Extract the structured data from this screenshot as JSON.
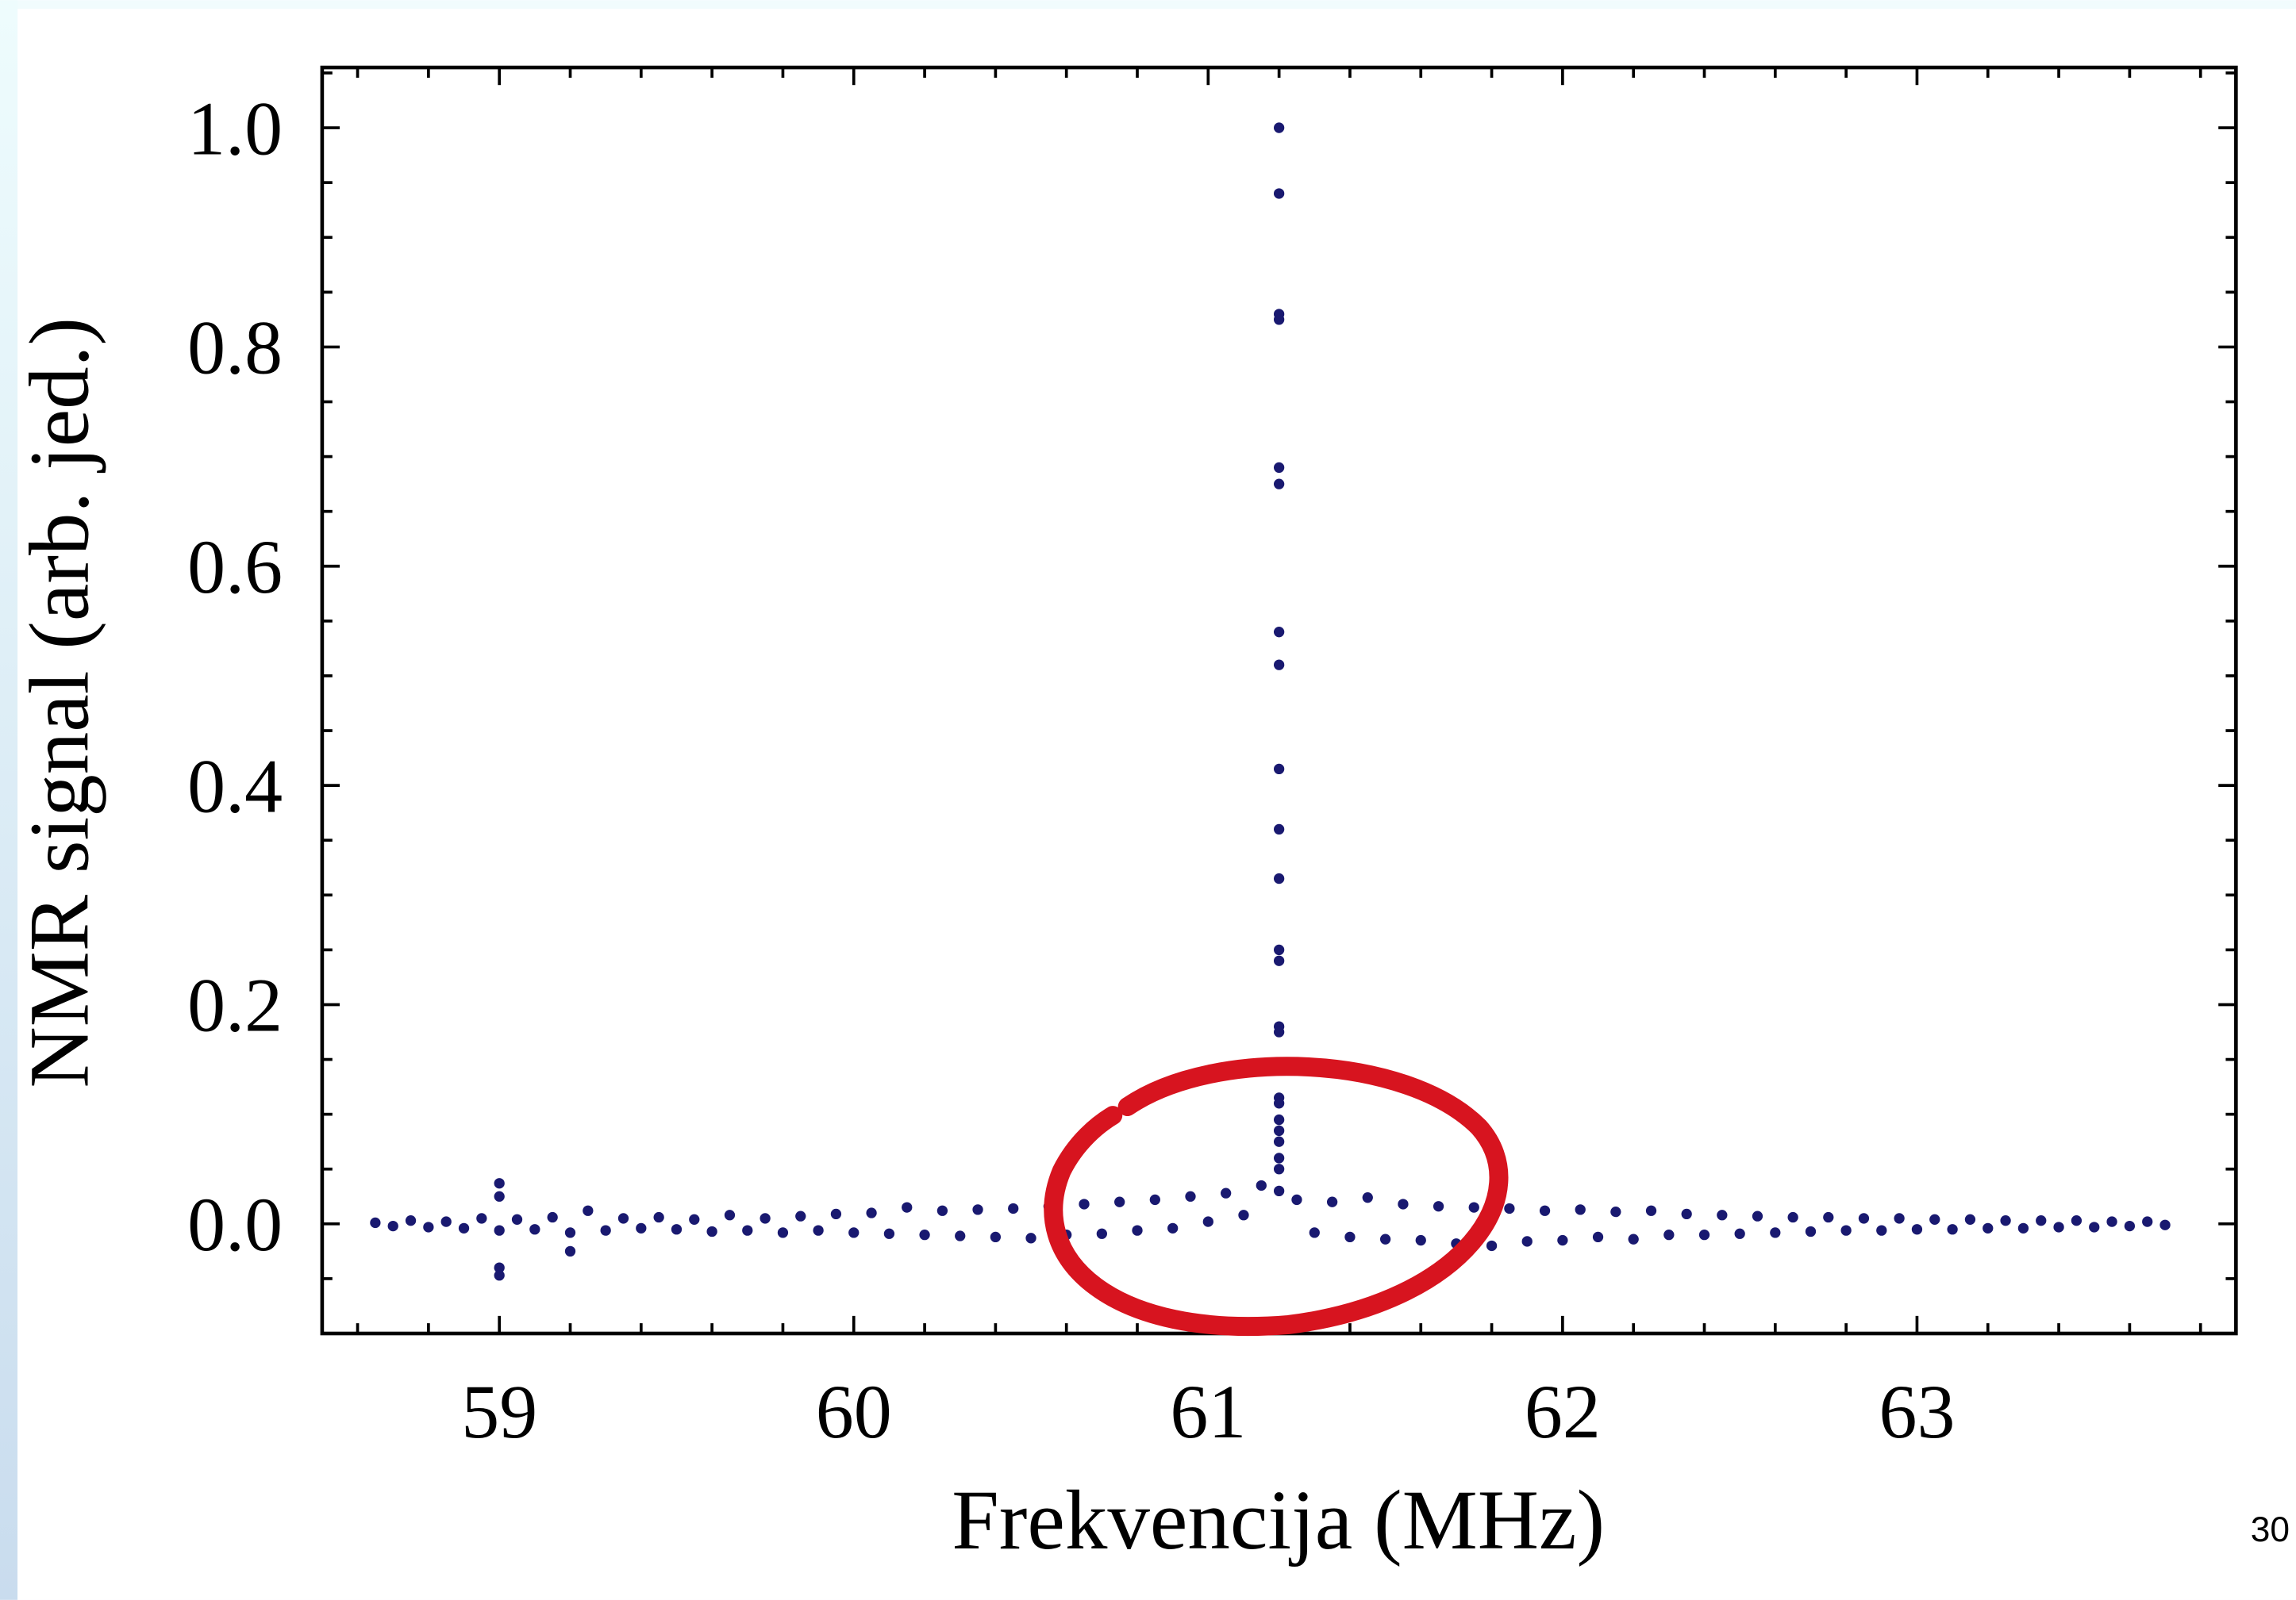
{
  "chart_data": {
    "type": "scatter",
    "xlabel": "Frekvencija (MHz)",
    "ylabel": "NMR signal (arb. jed.)",
    "color": "#191970",
    "x": [
      58.65,
      58.7,
      58.75,
      58.8,
      58.85,
      58.9,
      58.95,
      59.0,
      59.05,
      59.1,
      59.15,
      59.2,
      59.25,
      59.3,
      59.35,
      59.4,
      59.45,
      59.5,
      59.55,
      59.6,
      59.65,
      59.7,
      59.75,
      59.8,
      59.85,
      59.9,
      59.95,
      60.0,
      60.05,
      60.1,
      60.15,
      60.2,
      60.25,
      60.3,
      60.35,
      60.4,
      60.45,
      60.5,
      60.55,
      60.6,
      60.65,
      60.7,
      60.75,
      60.8,
      60.85,
      60.9,
      60.95,
      61.0,
      61.05,
      61.1,
      61.15,
      61.2,
      61.25,
      61.3,
      61.35,
      61.4,
      61.45,
      61.5,
      61.55,
      61.6,
      61.65,
      61.7,
      61.75,
      61.8,
      61.85,
      61.9,
      61.95,
      62.0,
      62.05,
      62.1,
      62.15,
      62.2,
      62.25,
      62.3,
      62.35,
      62.4,
      62.45,
      62.5,
      62.55,
      62.6,
      62.65,
      62.7,
      62.75,
      62.8,
      62.85,
      62.9,
      62.95,
      63.0,
      63.05,
      63.1,
      63.15,
      63.2,
      63.25,
      63.3,
      63.35,
      63.4,
      63.45,
      63.5,
      63.55,
      63.6,
      63.65,
      63.7,
      61.2,
      61.2,
      61.2,
      61.2,
      61.2,
      61.2,
      61.2,
      61.2,
      61.2,
      61.2,
      61.2,
      61.2,
      61.2,
      61.2,
      61.2,
      61.2,
      61.2,
      61.2,
      61.2,
      61.2,
      61.2,
      61.2,
      59.0,
      59.0,
      59.0,
      59.0,
      59.2
    ],
    "values": [
      0.001,
      -0.002,
      0.003,
      -0.003,
      0.002,
      -0.004,
      0.005,
      -0.006,
      0.004,
      -0.005,
      0.006,
      -0.008,
      0.012,
      -0.006,
      0.005,
      -0.004,
      0.006,
      -0.005,
      0.004,
      -0.007,
      0.008,
      -0.006,
      0.005,
      -0.008,
      0.007,
      -0.006,
      0.009,
      -0.008,
      0.01,
      -0.009,
      0.015,
      -0.01,
      0.012,
      -0.011,
      0.013,
      -0.012,
      0.014,
      -0.013,
      0.016,
      -0.01,
      0.018,
      -0.009,
      0.02,
      -0.006,
      0.022,
      -0.004,
      0.025,
      0.002,
      0.028,
      0.008,
      0.035,
      0.03,
      0.022,
      -0.008,
      0.02,
      -0.012,
      0.024,
      -0.014,
      0.018,
      -0.015,
      0.016,
      -0.018,
      0.015,
      -0.02,
      0.014,
      -0.016,
      0.012,
      -0.015,
      0.013,
      -0.012,
      0.011,
      -0.014,
      0.012,
      -0.01,
      0.009,
      -0.01,
      0.008,
      -0.009,
      0.007,
      -0.008,
      0.006,
      -0.007,
      0.006,
      -0.006,
      0.005,
      -0.006,
      0.005,
      -0.005,
      0.004,
      -0.005,
      0.004,
      -0.004,
      0.003,
      -0.004,
      0.003,
      -0.003,
      0.003,
      -0.003,
      0.002,
      -0.002,
      0.002,
      -0.001,
      1.0,
      0.94,
      0.83,
      0.825,
      0.69,
      0.675,
      0.54,
      0.51,
      0.415,
      0.36,
      0.315,
      0.25,
      0.24,
      0.18,
      0.175,
      0.115,
      0.11,
      0.095,
      0.085,
      0.075,
      0.06,
      0.05,
      0.037,
      0.025,
      -0.04,
      -0.047,
      -0.025
    ],
    "xlim": [
      58.5,
      63.9
    ],
    "ylim": [
      -0.1,
      1.055
    ],
    "xticks": [
      59,
      60,
      61,
      62,
      63
    ],
    "yticks": [
      {
        "value": 0,
        "label": "0.0"
      },
      {
        "value": 0.2,
        "label": "0.2"
      },
      {
        "value": 0.4,
        "label": "0.4"
      },
      {
        "value": 0.6,
        "label": "0.6"
      },
      {
        "value": 0.8,
        "label": "0.8"
      },
      {
        "value": 1.0,
        "label": "1.0"
      }
    ],
    "xminorticks": [
      58.6,
      58.8,
      59.2,
      59.4,
      59.6,
      59.8,
      60.2,
      60.4,
      60.6,
      60.8,
      61.2,
      61.4,
      61.6,
      61.8,
      62.2,
      62.4,
      62.6,
      62.8,
      63.2,
      63.4,
      63.6,
      63.8
    ],
    "yminorticks": [
      -0.05,
      0.05,
      0.1,
      0.15,
      0.25,
      0.3,
      0.35,
      0.45,
      0.5,
      0.55,
      0.65,
      0.7,
      0.75,
      0.85,
      0.9,
      0.95,
      1.05
    ]
  },
  "slide": {
    "page_number": "30"
  }
}
